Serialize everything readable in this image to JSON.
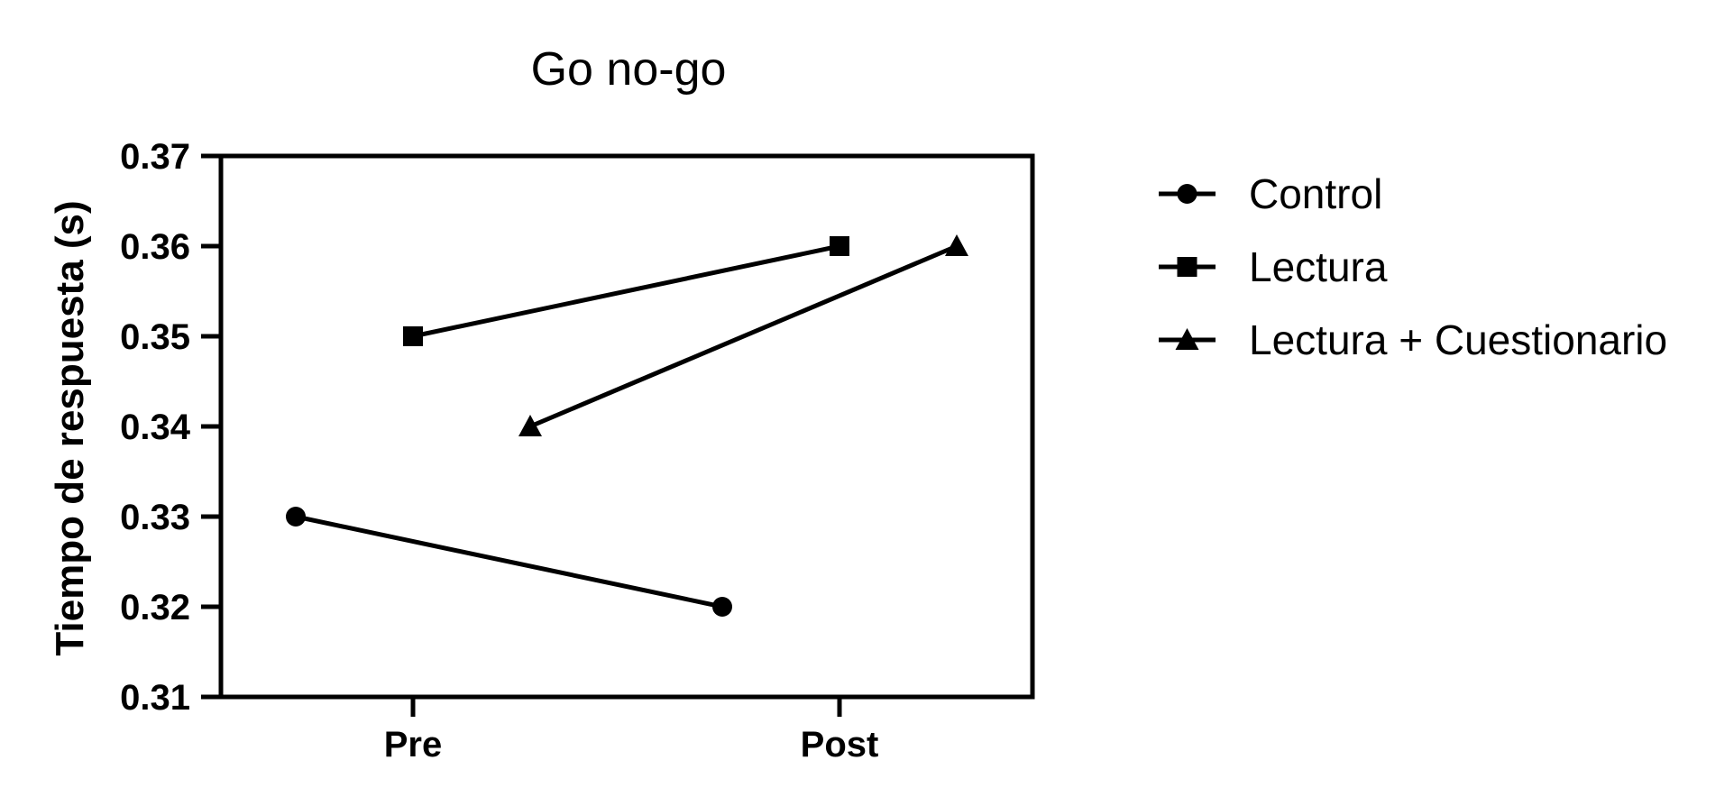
{
  "chart_data": {
    "type": "line",
    "title": "Go no-go",
    "xlabel": "",
    "ylabel": "Tiempo de respuesta (s)",
    "categories": [
      "Pre",
      "Post"
    ],
    "ylim": [
      0.31,
      0.37
    ],
    "yticks": [
      "0.31",
      "0.32",
      "0.33",
      "0.34",
      "0.35",
      "0.36",
      "0.37"
    ],
    "grid": false,
    "legend_position": "right",
    "series": [
      {
        "name": "Control",
        "marker": "circle",
        "values": [
          0.33,
          0.32
        ]
      },
      {
        "name": "Lectura",
        "marker": "square",
        "values": [
          0.35,
          0.36
        ]
      },
      {
        "name": "Lectura + Cuestionario",
        "marker": "triangle",
        "values": [
          0.34,
          0.36
        ]
      }
    ]
  }
}
